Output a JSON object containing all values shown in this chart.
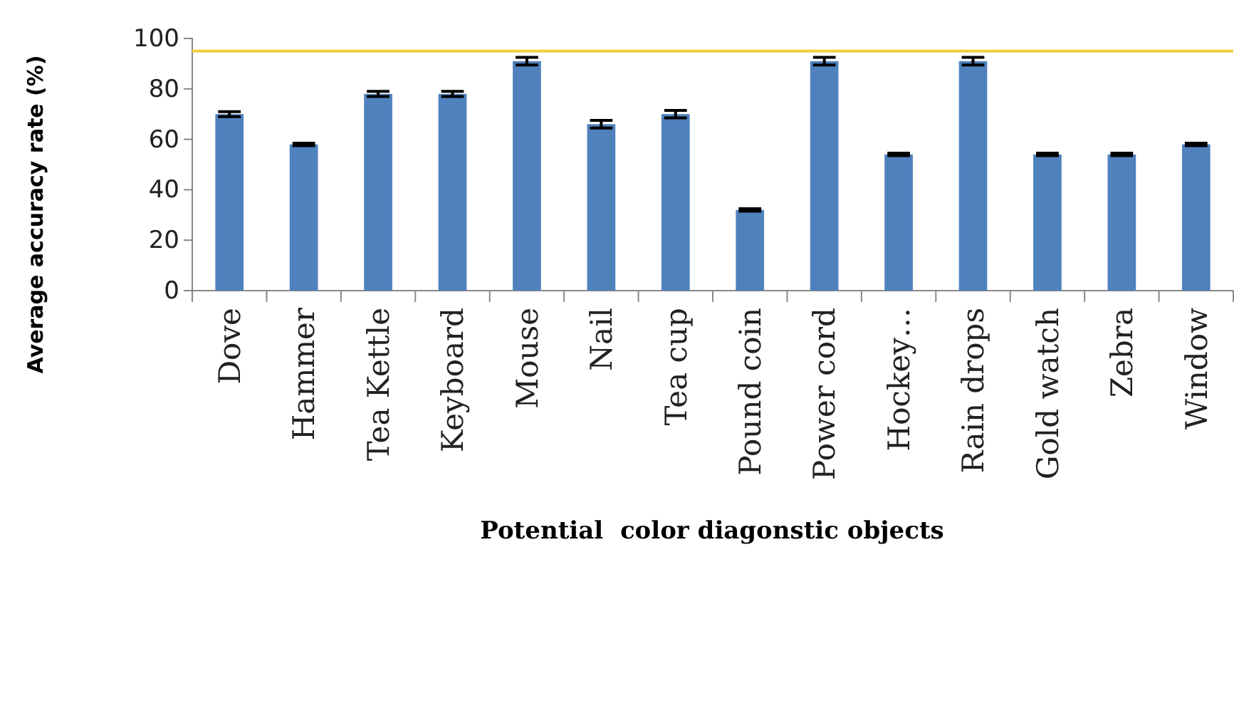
{
  "chart_data": {
    "type": "bar",
    "xlabel": "Potential  color diagonstic objects",
    "ylabel": "Average accuracy  rate (%)",
    "categories": [
      "Dove",
      "Hammer",
      "Tea Kettle",
      "Keyboard",
      "Mouse",
      "Nail",
      "Tea cup",
      "Pound coin",
      "Power cord",
      "Hockey…",
      "Rain drops",
      "Gold watch",
      "Zebra",
      "Window"
    ],
    "values": [
      70,
      58,
      78,
      78,
      91,
      66,
      70,
      32,
      91,
      54,
      91,
      54,
      54,
      58
    ],
    "errors": [
      1,
      0.5,
      1,
      1,
      1.5,
      1.5,
      1.5,
      0.5,
      1.5,
      0.5,
      1.5,
      0.5,
      0.5,
      0.5
    ],
    "color": "#4f81bd",
    "ylim": [
      0,
      100
    ],
    "yticks": [
      0,
      20,
      40,
      60,
      80,
      100
    ],
    "grid": false,
    "ref_lines": [
      {
        "axis": "y",
        "value": 95,
        "color": "#f0d040"
      }
    ]
  }
}
